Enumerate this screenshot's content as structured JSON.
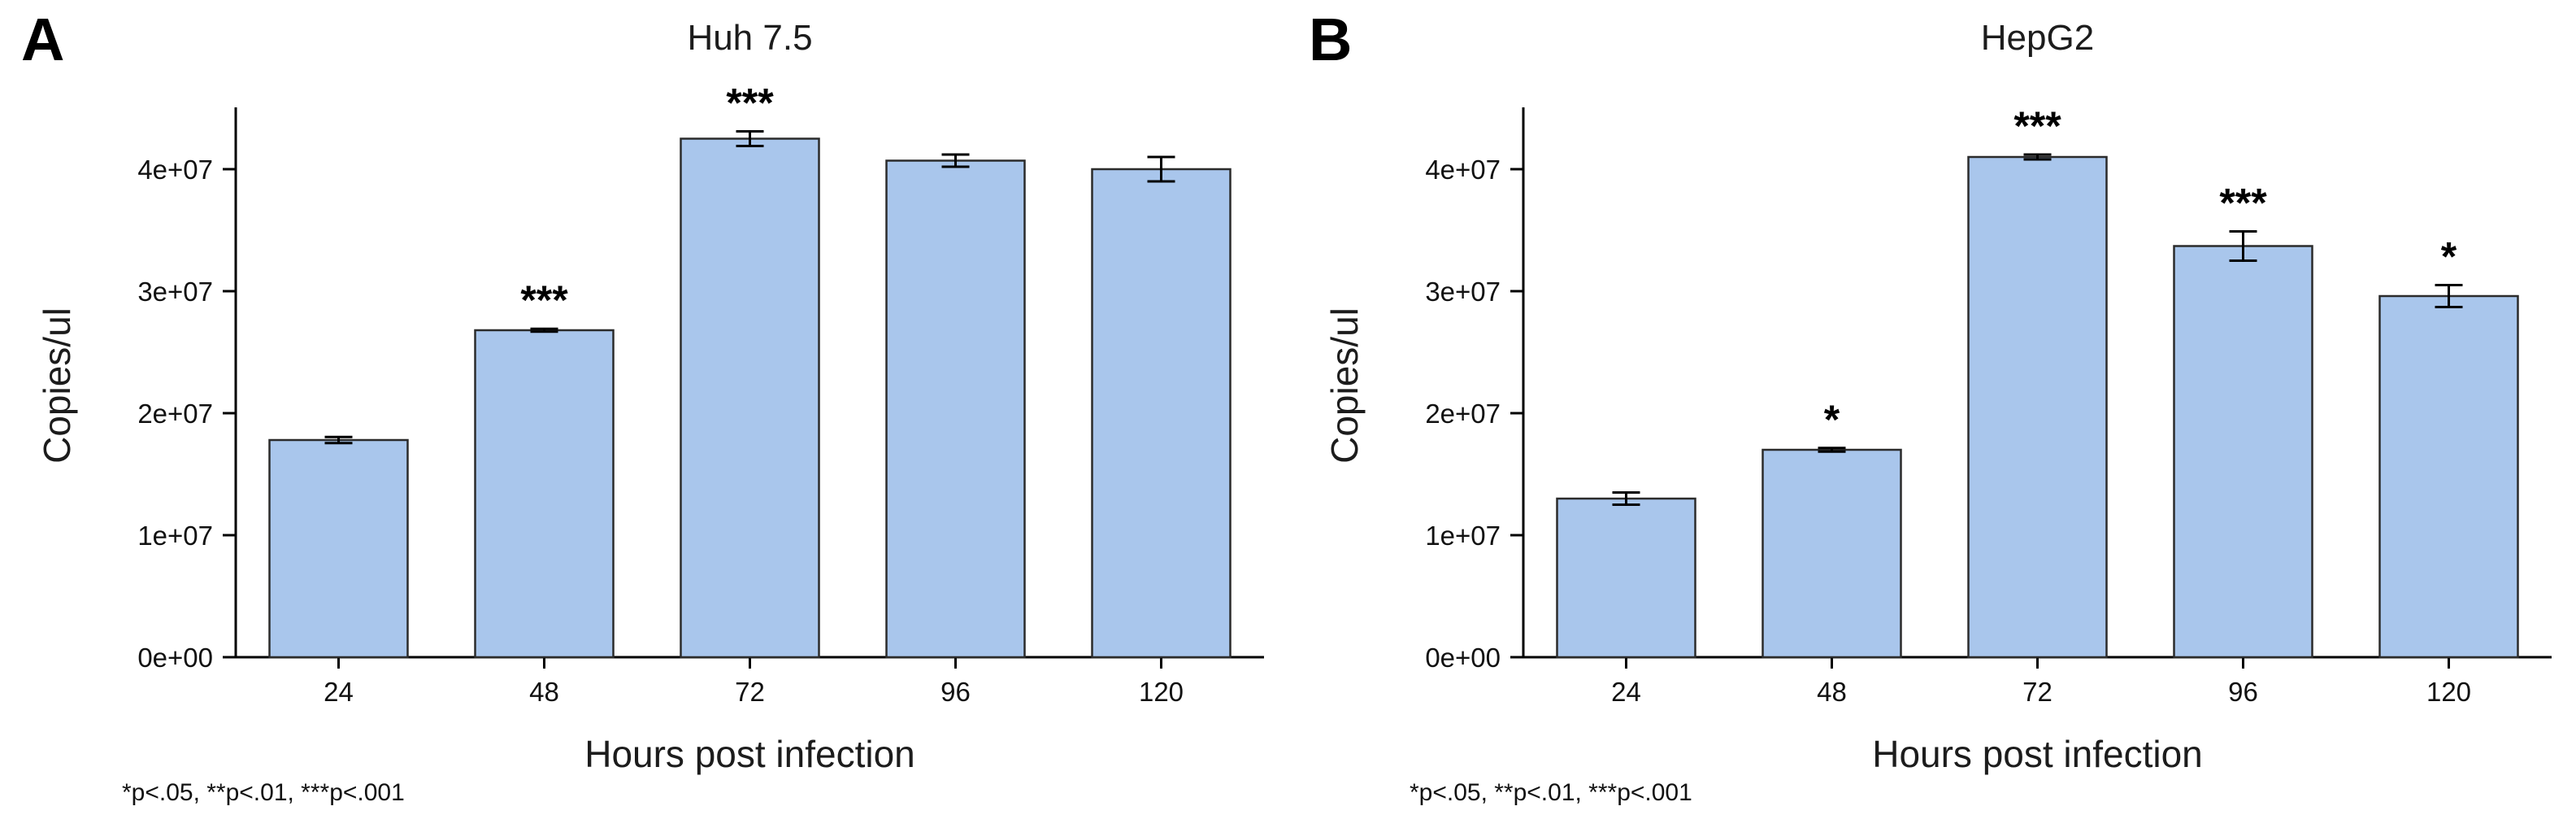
{
  "chart_data": [
    {
      "type": "bar",
      "panel_label": "A",
      "title": "Huh 7.5",
      "xlabel": "Hours post infection",
      "ylabel": "Copies/ul",
      "categories": [
        "24",
        "48",
        "72",
        "96",
        "120"
      ],
      "values": [
        17800000,
        26800000,
        42500000,
        40700000,
        40000000
      ],
      "errors": [
        250000,
        120000,
        600000,
        500000,
        1000000
      ],
      "annotations": [
        "",
        "***",
        "***",
        "",
        ""
      ],
      "ylim": [
        0,
        46000000
      ],
      "yticks": [
        0,
        10000000,
        20000000,
        30000000,
        40000000
      ],
      "ytick_labels": [
        "0e+00",
        "1e+07",
        "2e+07",
        "3e+07",
        "4e+07"
      ],
      "grid": false,
      "legend": "none",
      "bar_color": "#a9c6ec",
      "bar_border_color": "#2b2b2b",
      "footnote": "*p<.05, **p<.01, ***p<.001"
    },
    {
      "type": "bar",
      "panel_label": "B",
      "title": "HepG2",
      "xlabel": "Hours post infection",
      "ylabel": "Copies/ul",
      "categories": [
        "24",
        "48",
        "72",
        "96",
        "120"
      ],
      "values": [
        13000000,
        17000000,
        41000000,
        33700000,
        29600000
      ],
      "errors": [
        500000,
        150000,
        200000,
        1200000,
        900000
      ],
      "annotations": [
        "",
        "*",
        "***",
        "***",
        "*"
      ],
      "ylim": [
        0,
        46000000
      ],
      "yticks": [
        0,
        10000000,
        20000000,
        30000000,
        40000000
      ],
      "ytick_labels": [
        "0e+00",
        "1e+07",
        "2e+07",
        "3e+07",
        "4e+07"
      ],
      "grid": false,
      "legend": "none",
      "bar_color": "#a9c6ec",
      "bar_border_color": "#2b2b2b",
      "footnote": "*p<.05, **p<.01, ***p<.001"
    }
  ]
}
